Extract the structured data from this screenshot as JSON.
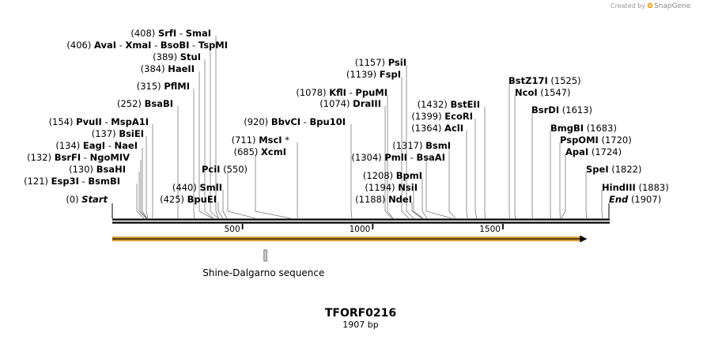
{
  "credit": {
    "text": "Created by",
    "brand": "SnapGene",
    "logo_color": "#f59a1b"
  },
  "title": "TFORF0216",
  "length_label": "1907 bp",
  "total_bp": 1907,
  "ticks": [
    {
      "value": 500,
      "label": "500"
    },
    {
      "value": 1000,
      "label": "1000"
    },
    {
      "value": 1500,
      "label": "1500"
    }
  ],
  "orf": {
    "start": 1,
    "end": 1823,
    "color": "#e6a532"
  },
  "features": [
    {
      "name": "Shine-Dalgarno sequence",
      "start": 587,
      "end": 593
    }
  ],
  "sites": [
    {
      "id": "start",
      "pos": "(0)",
      "names": [
        "Start"
      ],
      "bp": 0,
      "special": true
    },
    {
      "id": "esp3i",
      "pos": "(121)",
      "names": [
        "Esp3I",
        "BsmBI"
      ],
      "bp": 121
    },
    {
      "id": "bsrfi",
      "pos": "(132)",
      "names": [
        "BsrFI",
        "NgoMIV"
      ],
      "bp": 132
    },
    {
      "id": "bsahi",
      "pos": "(130)",
      "names": [
        "BsaHI"
      ],
      "bp": 130
    },
    {
      "id": "eagi",
      "pos": "(134)",
      "names": [
        "EagI",
        "NaeI"
      ],
      "bp": 134
    },
    {
      "id": "bsiei",
      "pos": "(137)",
      "names": [
        "BsiEI"
      ],
      "bp": 137
    },
    {
      "id": "pvuii",
      "pos": "(154)",
      "names": [
        "PvuII",
        "MspA1I"
      ],
      "bp": 154
    },
    {
      "id": "bsabi",
      "pos": "(252)",
      "names": [
        "BsaBI"
      ],
      "bp": 252
    },
    {
      "id": "pflmi",
      "pos": "(315)",
      "names": [
        "PflMI"
      ],
      "bp": 315
    },
    {
      "id": "haeii",
      "pos": "(384)",
      "names": [
        "HaeII"
      ],
      "bp": 384
    },
    {
      "id": "stui",
      "pos": "(389)",
      "names": [
        "StuI"
      ],
      "bp": 389
    },
    {
      "id": "avai",
      "pos": "(406)",
      "names": [
        "AvaI",
        "XmaI",
        "BsoBI",
        "TspMI"
      ],
      "bp": 406
    },
    {
      "id": "srfi",
      "pos": "(408)",
      "names": [
        "SrfI",
        "SmaI"
      ],
      "bp": 408
    },
    {
      "id": "bpuei",
      "pos": "(425)",
      "names": [
        "BpuEI"
      ],
      "bp": 425
    },
    {
      "id": "smli",
      "pos": "(440)",
      "names": [
        "SmlI"
      ],
      "bp": 440
    },
    {
      "id": "pcii",
      "pos": "(550)",
      "names": [
        "PciI"
      ],
      "bp": 550
    },
    {
      "id": "xcmi",
      "pos": "(685)",
      "names": [
        "XcmI"
      ],
      "bp": 685
    },
    {
      "id": "msci",
      "pos": "(711)",
      "names": [
        "MscI"
      ],
      "bp": 711,
      "star": "*"
    },
    {
      "id": "bbvci",
      "pos": "(920)",
      "names": [
        "BbvCI",
        "Bpu10I"
      ],
      "bp": 920
    },
    {
      "id": "draiii",
      "pos": "(1074)",
      "names": [
        "DraIII"
      ],
      "bp": 1074
    },
    {
      "id": "kfli",
      "pos": "(1078)",
      "names": [
        "KflI",
        "PpuMI"
      ],
      "bp": 1078
    },
    {
      "id": "fspi",
      "pos": "(1139)",
      "names": [
        "FspI"
      ],
      "bp": 1139
    },
    {
      "id": "psii",
      "pos": "(1157)",
      "names": [
        "PsiI"
      ],
      "bp": 1157
    },
    {
      "id": "ndei",
      "pos": "(1188)",
      "names": [
        "NdeI"
      ],
      "bp": 1188
    },
    {
      "id": "nsii",
      "pos": "(1194)",
      "names": [
        "NsiI"
      ],
      "bp": 1194
    },
    {
      "id": "bpmi",
      "pos": "(1208)",
      "names": [
        "BpmI"
      ],
      "bp": 1208
    },
    {
      "id": "pmli",
      "pos": "(1304)",
      "names": [
        "PmlI",
        "BsaAI"
      ],
      "bp": 1304
    },
    {
      "id": "bsmi",
      "pos": "(1317)",
      "names": [
        "BsmI"
      ],
      "bp": 1317
    },
    {
      "id": "acli",
      "pos": "(1364)",
      "names": [
        "AclI"
      ],
      "bp": 1364
    },
    {
      "id": "ecori",
      "pos": "(1399)",
      "names": [
        "EcoRI"
      ],
      "bp": 1399
    },
    {
      "id": "bsteii",
      "pos": "(1432)",
      "names": [
        "BstEII"
      ],
      "bp": 1432
    },
    {
      "id": "bstz17i",
      "pos": "(1525)",
      "names": [
        "BstZ17I"
      ],
      "bp": 1525
    },
    {
      "id": "ncoi",
      "pos": "(1547)",
      "names": [
        "NcoI"
      ],
      "bp": 1547
    },
    {
      "id": "bsrdi",
      "pos": "(1613)",
      "names": [
        "BsrDI"
      ],
      "bp": 1613
    },
    {
      "id": "bmgbi",
      "pos": "(1683)",
      "names": [
        "BmgBI"
      ],
      "bp": 1683
    },
    {
      "id": "pspomi",
      "pos": "(1720)",
      "names": [
        "PspOMI"
      ],
      "bp": 1720
    },
    {
      "id": "apai",
      "pos": "(1724)",
      "names": [
        "ApaI"
      ],
      "bp": 1724
    },
    {
      "id": "spei",
      "pos": "(1822)",
      "names": [
        "SpeI"
      ],
      "bp": 1822
    },
    {
      "id": "hindiii",
      "pos": "(1883)",
      "names": [
        "HindIII"
      ],
      "bp": 1883
    },
    {
      "id": "end",
      "pos": "(1907)",
      "names": [
        "End"
      ],
      "bp": 1907,
      "special": true
    }
  ]
}
